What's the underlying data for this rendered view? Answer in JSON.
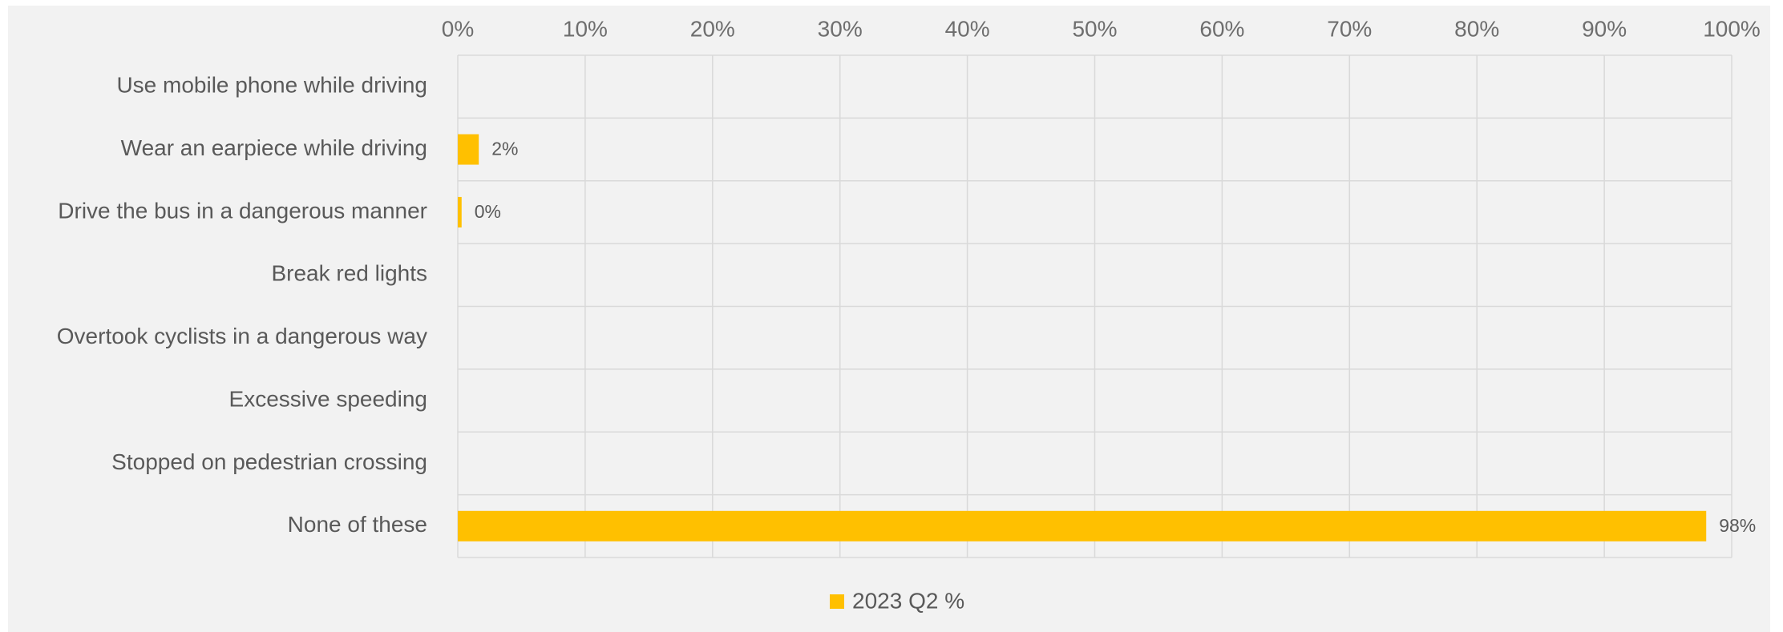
{
  "chart_data": {
    "type": "bar",
    "orientation": "horizontal",
    "categories": [
      "Use mobile phone while driving",
      "Wear an earpiece while driving",
      "Drive the bus in a dangerous manner",
      "Break red lights",
      "Overtook cyclists in a dangerous way",
      "Excessive speeding",
      "Stopped on pedestrian crossing",
      "None of these"
    ],
    "series": [
      {
        "name": "2023 Q2 %",
        "values": [
          null,
          0.0165,
          0.003,
          null,
          null,
          null,
          null,
          0.98
        ],
        "data_labels": [
          null,
          "2%",
          "0%",
          null,
          null,
          null,
          null,
          "98%"
        ],
        "color": "#ffc000"
      }
    ],
    "xlim": [
      0,
      1
    ],
    "x_ticks": [
      "0%",
      "10%",
      "20%",
      "30%",
      "40%",
      "50%",
      "60%",
      "70%",
      "80%",
      "90%",
      "100%"
    ],
    "x_axis_position": "top",
    "grid": true,
    "legend": "bottom-center",
    "title": "",
    "xlabel": "",
    "ylabel": ""
  }
}
